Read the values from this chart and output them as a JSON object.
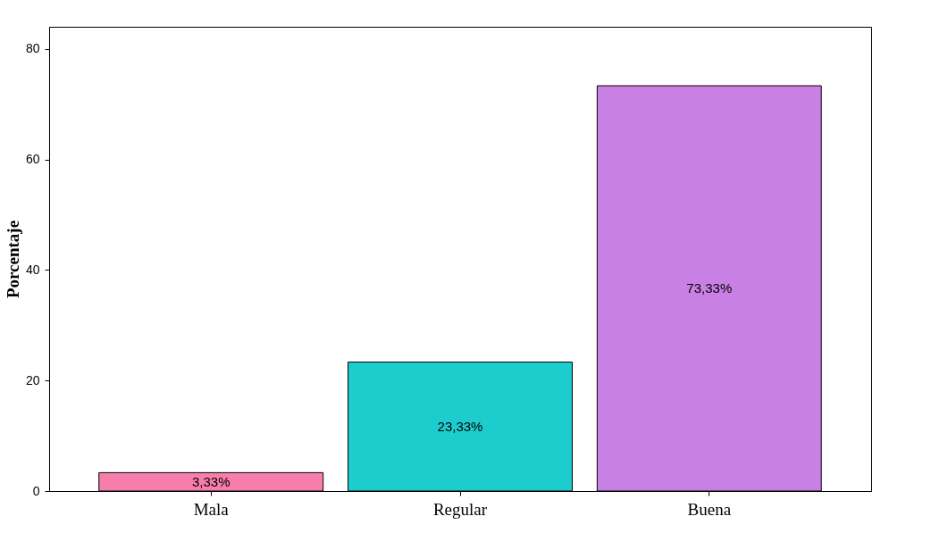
{
  "chart_data": {
    "type": "bar",
    "ylabel": "Porcentaje",
    "categories": [
      "Mala",
      "Regular",
      "Buena"
    ],
    "values": [
      3.33,
      23.33,
      73.33
    ],
    "colors": [
      "#f77eab",
      "#1dcdcd",
      "#c880e4"
    ],
    "value_labels": [
      "3,33%",
      "23,33%",
      "73,33%"
    ],
    "ylim": [
      0,
      84
    ],
    "yticks": [
      0,
      20,
      40,
      60,
      80
    ]
  }
}
